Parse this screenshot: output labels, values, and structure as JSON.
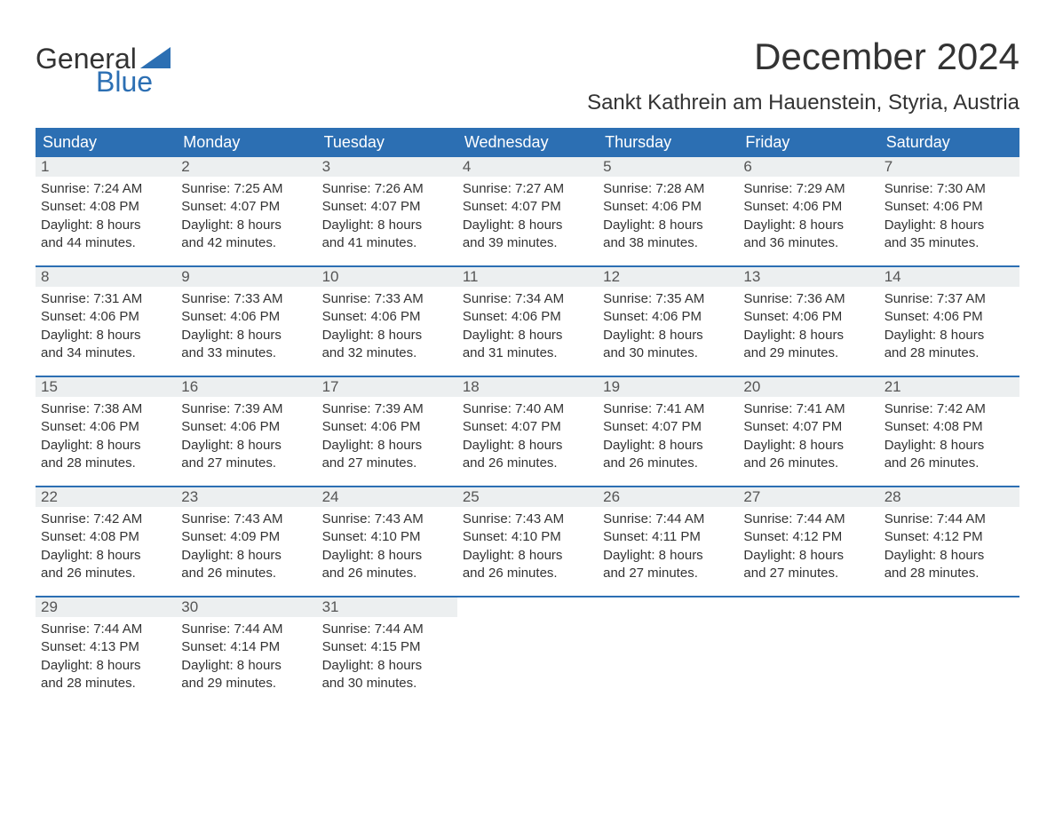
{
  "logo": {
    "top": "General",
    "bottom": "Blue"
  },
  "header": {
    "title": "December 2024",
    "location": "Sankt Kathrein am Hauenstein, Styria, Austria"
  },
  "colors": {
    "header_bg": "#2c6fb3",
    "header_text": "#ffffff",
    "daynum_bg": "#eceff0",
    "daynum_text": "#555555",
    "body_text": "#333333",
    "page_bg": "#ffffff",
    "week_divider": "#2c6fb3"
  },
  "typography": {
    "title_fontsize": 42,
    "location_fontsize": 24,
    "weekday_fontsize": 18,
    "daynum_fontsize": 17,
    "body_fontsize": 15,
    "logo_fontsize": 32
  },
  "weekdays": [
    "Sunday",
    "Monday",
    "Tuesday",
    "Wednesday",
    "Thursday",
    "Friday",
    "Saturday"
  ],
  "weeks": [
    [
      {
        "n": "1",
        "sunrise": "Sunrise: 7:24 AM",
        "sunset": "Sunset: 4:08 PM",
        "d1": "Daylight: 8 hours",
        "d2": "and 44 minutes."
      },
      {
        "n": "2",
        "sunrise": "Sunrise: 7:25 AM",
        "sunset": "Sunset: 4:07 PM",
        "d1": "Daylight: 8 hours",
        "d2": "and 42 minutes."
      },
      {
        "n": "3",
        "sunrise": "Sunrise: 7:26 AM",
        "sunset": "Sunset: 4:07 PM",
        "d1": "Daylight: 8 hours",
        "d2": "and 41 minutes."
      },
      {
        "n": "4",
        "sunrise": "Sunrise: 7:27 AM",
        "sunset": "Sunset: 4:07 PM",
        "d1": "Daylight: 8 hours",
        "d2": "and 39 minutes."
      },
      {
        "n": "5",
        "sunrise": "Sunrise: 7:28 AM",
        "sunset": "Sunset: 4:06 PM",
        "d1": "Daylight: 8 hours",
        "d2": "and 38 minutes."
      },
      {
        "n": "6",
        "sunrise": "Sunrise: 7:29 AM",
        "sunset": "Sunset: 4:06 PM",
        "d1": "Daylight: 8 hours",
        "d2": "and 36 minutes."
      },
      {
        "n": "7",
        "sunrise": "Sunrise: 7:30 AM",
        "sunset": "Sunset: 4:06 PM",
        "d1": "Daylight: 8 hours",
        "d2": "and 35 minutes."
      }
    ],
    [
      {
        "n": "8",
        "sunrise": "Sunrise: 7:31 AM",
        "sunset": "Sunset: 4:06 PM",
        "d1": "Daylight: 8 hours",
        "d2": "and 34 minutes."
      },
      {
        "n": "9",
        "sunrise": "Sunrise: 7:33 AM",
        "sunset": "Sunset: 4:06 PM",
        "d1": "Daylight: 8 hours",
        "d2": "and 33 minutes."
      },
      {
        "n": "10",
        "sunrise": "Sunrise: 7:33 AM",
        "sunset": "Sunset: 4:06 PM",
        "d1": "Daylight: 8 hours",
        "d2": "and 32 minutes."
      },
      {
        "n": "11",
        "sunrise": "Sunrise: 7:34 AM",
        "sunset": "Sunset: 4:06 PM",
        "d1": "Daylight: 8 hours",
        "d2": "and 31 minutes."
      },
      {
        "n": "12",
        "sunrise": "Sunrise: 7:35 AM",
        "sunset": "Sunset: 4:06 PM",
        "d1": "Daylight: 8 hours",
        "d2": "and 30 minutes."
      },
      {
        "n": "13",
        "sunrise": "Sunrise: 7:36 AM",
        "sunset": "Sunset: 4:06 PM",
        "d1": "Daylight: 8 hours",
        "d2": "and 29 minutes."
      },
      {
        "n": "14",
        "sunrise": "Sunrise: 7:37 AM",
        "sunset": "Sunset: 4:06 PM",
        "d1": "Daylight: 8 hours",
        "d2": "and 28 minutes."
      }
    ],
    [
      {
        "n": "15",
        "sunrise": "Sunrise: 7:38 AM",
        "sunset": "Sunset: 4:06 PM",
        "d1": "Daylight: 8 hours",
        "d2": "and 28 minutes."
      },
      {
        "n": "16",
        "sunrise": "Sunrise: 7:39 AM",
        "sunset": "Sunset: 4:06 PM",
        "d1": "Daylight: 8 hours",
        "d2": "and 27 minutes."
      },
      {
        "n": "17",
        "sunrise": "Sunrise: 7:39 AM",
        "sunset": "Sunset: 4:06 PM",
        "d1": "Daylight: 8 hours",
        "d2": "and 27 minutes."
      },
      {
        "n": "18",
        "sunrise": "Sunrise: 7:40 AM",
        "sunset": "Sunset: 4:07 PM",
        "d1": "Daylight: 8 hours",
        "d2": "and 26 minutes."
      },
      {
        "n": "19",
        "sunrise": "Sunrise: 7:41 AM",
        "sunset": "Sunset: 4:07 PM",
        "d1": "Daylight: 8 hours",
        "d2": "and 26 minutes."
      },
      {
        "n": "20",
        "sunrise": "Sunrise: 7:41 AM",
        "sunset": "Sunset: 4:07 PM",
        "d1": "Daylight: 8 hours",
        "d2": "and 26 minutes."
      },
      {
        "n": "21",
        "sunrise": "Sunrise: 7:42 AM",
        "sunset": "Sunset: 4:08 PM",
        "d1": "Daylight: 8 hours",
        "d2": "and 26 minutes."
      }
    ],
    [
      {
        "n": "22",
        "sunrise": "Sunrise: 7:42 AM",
        "sunset": "Sunset: 4:08 PM",
        "d1": "Daylight: 8 hours",
        "d2": "and 26 minutes."
      },
      {
        "n": "23",
        "sunrise": "Sunrise: 7:43 AM",
        "sunset": "Sunset: 4:09 PM",
        "d1": "Daylight: 8 hours",
        "d2": "and 26 minutes."
      },
      {
        "n": "24",
        "sunrise": "Sunrise: 7:43 AM",
        "sunset": "Sunset: 4:10 PM",
        "d1": "Daylight: 8 hours",
        "d2": "and 26 minutes."
      },
      {
        "n": "25",
        "sunrise": "Sunrise: 7:43 AM",
        "sunset": "Sunset: 4:10 PM",
        "d1": "Daylight: 8 hours",
        "d2": "and 26 minutes."
      },
      {
        "n": "26",
        "sunrise": "Sunrise: 7:44 AM",
        "sunset": "Sunset: 4:11 PM",
        "d1": "Daylight: 8 hours",
        "d2": "and 27 minutes."
      },
      {
        "n": "27",
        "sunrise": "Sunrise: 7:44 AM",
        "sunset": "Sunset: 4:12 PM",
        "d1": "Daylight: 8 hours",
        "d2": "and 27 minutes."
      },
      {
        "n": "28",
        "sunrise": "Sunrise: 7:44 AM",
        "sunset": "Sunset: 4:12 PM",
        "d1": "Daylight: 8 hours",
        "d2": "and 28 minutes."
      }
    ],
    [
      {
        "n": "29",
        "sunrise": "Sunrise: 7:44 AM",
        "sunset": "Sunset: 4:13 PM",
        "d1": "Daylight: 8 hours",
        "d2": "and 28 minutes."
      },
      {
        "n": "30",
        "sunrise": "Sunrise: 7:44 AM",
        "sunset": "Sunset: 4:14 PM",
        "d1": "Daylight: 8 hours",
        "d2": "and 29 minutes."
      },
      {
        "n": "31",
        "sunrise": "Sunrise: 7:44 AM",
        "sunset": "Sunset: 4:15 PM",
        "d1": "Daylight: 8 hours",
        "d2": "and 30 minutes."
      },
      {
        "empty": true
      },
      {
        "empty": true
      },
      {
        "empty": true
      },
      {
        "empty": true
      }
    ]
  ]
}
